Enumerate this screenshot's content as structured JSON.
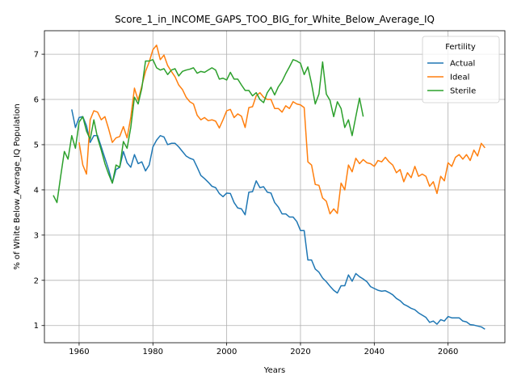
{
  "chart_data": {
    "type": "line",
    "title": "Score_1_in_INCOME_GAPS_TOO_BIG_for_White_Below_Average_IQ",
    "xlabel": "Years",
    "ylabel": "% of White Below_Average_IQ Population",
    "xlim": [
      1950.6,
      2075.4
    ],
    "ylim": [
      0.62,
      7.52
    ],
    "xticks": [
      1960,
      1980,
      2000,
      2020,
      2040,
      2060
    ],
    "yticks": [
      1,
      2,
      3,
      4,
      5,
      6,
      7
    ],
    "grid": true,
    "legend": {
      "title": "Fertility",
      "position": "top-right"
    },
    "series": [
      {
        "name": "Actual",
        "color": "#1f77b4",
        "points": [
          [
            1958,
            5.78
          ],
          [
            1959,
            5.38
          ],
          [
            1960,
            5.6
          ],
          [
            1961,
            5.62
          ],
          [
            1962,
            5.42
          ],
          [
            1963,
            5.05
          ],
          [
            1964,
            5.2
          ],
          [
            1965,
            5.2
          ],
          [
            1966,
            4.95
          ],
          [
            1967,
            4.7
          ],
          [
            1968,
            4.45
          ],
          [
            1969,
            4.15
          ],
          [
            1970,
            4.45
          ],
          [
            1971,
            4.5
          ],
          [
            1972,
            4.85
          ],
          [
            1973,
            4.6
          ],
          [
            1974,
            4.5
          ],
          [
            1975,
            4.78
          ],
          [
            1976,
            4.58
          ],
          [
            1977,
            4.62
          ],
          [
            1978,
            4.42
          ],
          [
            1979,
            4.55
          ],
          [
            1980,
            4.95
          ],
          [
            1981,
            5.1
          ],
          [
            1982,
            5.2
          ],
          [
            1983,
            5.17
          ],
          [
            1984,
            5.0
          ],
          [
            1985,
            5.03
          ],
          [
            1986,
            5.03
          ],
          [
            1987,
            4.95
          ],
          [
            1988,
            4.85
          ],
          [
            1989,
            4.75
          ],
          [
            1990,
            4.7
          ],
          [
            1991,
            4.67
          ],
          [
            1992,
            4.5
          ],
          [
            1993,
            4.32
          ],
          [
            1994,
            4.25
          ],
          [
            1995,
            4.17
          ],
          [
            1996,
            4.08
          ],
          [
            1997,
            4.05
          ],
          [
            1998,
            3.92
          ],
          [
            1999,
            3.85
          ],
          [
            2000,
            3.93
          ],
          [
            2001,
            3.92
          ],
          [
            2002,
            3.72
          ],
          [
            2003,
            3.6
          ],
          [
            2004,
            3.58
          ],
          [
            2005,
            3.45
          ],
          [
            2006,
            3.95
          ],
          [
            2007,
            3.96
          ],
          [
            2008,
            4.2
          ],
          [
            2009,
            4.05
          ],
          [
            2010,
            4.07
          ],
          [
            2011,
            3.95
          ],
          [
            2012,
            3.93
          ],
          [
            2013,
            3.72
          ],
          [
            2014,
            3.62
          ],
          [
            2015,
            3.47
          ],
          [
            2016,
            3.47
          ],
          [
            2017,
            3.4
          ],
          [
            2018,
            3.4
          ],
          [
            2019,
            3.3
          ],
          [
            2020,
            3.1
          ],
          [
            2021,
            3.1
          ],
          [
            2022,
            2.45
          ],
          [
            2023,
            2.45
          ],
          [
            2024,
            2.25
          ],
          [
            2025,
            2.18
          ],
          [
            2026,
            2.05
          ],
          [
            2027,
            1.97
          ],
          [
            2028,
            1.87
          ],
          [
            2029,
            1.78
          ],
          [
            2030,
            1.72
          ],
          [
            2031,
            1.88
          ],
          [
            2032,
            1.88
          ],
          [
            2033,
            2.12
          ],
          [
            2034,
            1.98
          ],
          [
            2035,
            2.15
          ],
          [
            2036,
            2.08
          ],
          [
            2037,
            2.03
          ],
          [
            2038,
            1.97
          ],
          [
            2039,
            1.86
          ],
          [
            2040,
            1.82
          ],
          [
            2041,
            1.78
          ],
          [
            2042,
            1.76
          ],
          [
            2043,
            1.77
          ],
          [
            2044,
            1.73
          ],
          [
            2045,
            1.68
          ],
          [
            2046,
            1.6
          ],
          [
            2047,
            1.55
          ],
          [
            2048,
            1.47
          ],
          [
            2049,
            1.43
          ],
          [
            2050,
            1.38
          ],
          [
            2051,
            1.35
          ],
          [
            2052,
            1.28
          ],
          [
            2053,
            1.23
          ],
          [
            2054,
            1.18
          ],
          [
            2055,
            1.07
          ],
          [
            2056,
            1.1
          ],
          [
            2057,
            1.03
          ],
          [
            2058,
            1.13
          ],
          [
            2059,
            1.1
          ],
          [
            2060,
            1.2
          ],
          [
            2061,
            1.17
          ],
          [
            2062,
            1.17
          ],
          [
            2063,
            1.17
          ],
          [
            2064,
            1.1
          ],
          [
            2065,
            1.08
          ],
          [
            2066,
            1.02
          ],
          [
            2067,
            1.01
          ],
          [
            2068,
            0.99
          ],
          [
            2069,
            0.97
          ],
          [
            2070,
            0.92
          ]
        ]
      },
      {
        "name": "Ideal",
        "color": "#ff7f0e",
        "points": [
          [
            1960,
            5.05
          ],
          [
            1961,
            4.55
          ],
          [
            1962,
            4.35
          ],
          [
            1963,
            5.55
          ],
          [
            1964,
            5.75
          ],
          [
            1965,
            5.72
          ],
          [
            1966,
            5.55
          ],
          [
            1967,
            5.62
          ],
          [
            1968,
            5.35
          ],
          [
            1969,
            5.05
          ],
          [
            1970,
            5.15
          ],
          [
            1971,
            5.18
          ],
          [
            1972,
            5.4
          ],
          [
            1973,
            5.15
          ],
          [
            1974,
            5.6
          ],
          [
            1975,
            6.25
          ],
          [
            1976,
            5.98
          ],
          [
            1977,
            6.3
          ],
          [
            1978,
            6.62
          ],
          [
            1979,
            6.83
          ],
          [
            1980,
            7.1
          ],
          [
            1981,
            7.2
          ],
          [
            1982,
            6.88
          ],
          [
            1983,
            6.98
          ],
          [
            1984,
            6.75
          ],
          [
            1985,
            6.62
          ],
          [
            1986,
            6.5
          ],
          [
            1987,
            6.32
          ],
          [
            1988,
            6.22
          ],
          [
            1989,
            6.05
          ],
          [
            1990,
            5.95
          ],
          [
            1991,
            5.9
          ],
          [
            1992,
            5.65
          ],
          [
            1993,
            5.55
          ],
          [
            1994,
            5.6
          ],
          [
            1995,
            5.53
          ],
          [
            1996,
            5.55
          ],
          [
            1997,
            5.52
          ],
          [
            1998,
            5.37
          ],
          [
            1999,
            5.55
          ],
          [
            2000,
            5.75
          ],
          [
            2001,
            5.78
          ],
          [
            2002,
            5.6
          ],
          [
            2003,
            5.68
          ],
          [
            2004,
            5.63
          ],
          [
            2005,
            5.38
          ],
          [
            2006,
            5.82
          ],
          [
            2007,
            5.84
          ],
          [
            2008,
            6.08
          ],
          [
            2009,
            6.15
          ],
          [
            2010,
            6.05
          ],
          [
            2011,
            6.0
          ],
          [
            2012,
            6.0
          ],
          [
            2013,
            5.8
          ],
          [
            2014,
            5.8
          ],
          [
            2015,
            5.72
          ],
          [
            2016,
            5.86
          ],
          [
            2017,
            5.8
          ],
          [
            2018,
            5.95
          ],
          [
            2019,
            5.9
          ],
          [
            2020,
            5.88
          ],
          [
            2021,
            5.82
          ],
          [
            2022,
            4.62
          ],
          [
            2023,
            4.55
          ],
          [
            2024,
            4.12
          ],
          [
            2025,
            4.1
          ],
          [
            2026,
            3.82
          ],
          [
            2027,
            3.75
          ],
          [
            2028,
            3.47
          ],
          [
            2029,
            3.58
          ],
          [
            2030,
            3.48
          ],
          [
            2031,
            4.15
          ],
          [
            2032,
            4.0
          ],
          [
            2033,
            4.55
          ],
          [
            2034,
            4.4
          ],
          [
            2035,
            4.7
          ],
          [
            2036,
            4.58
          ],
          [
            2037,
            4.67
          ],
          [
            2038,
            4.6
          ],
          [
            2039,
            4.58
          ],
          [
            2040,
            4.52
          ],
          [
            2041,
            4.65
          ],
          [
            2042,
            4.62
          ],
          [
            2043,
            4.72
          ],
          [
            2044,
            4.62
          ],
          [
            2045,
            4.55
          ],
          [
            2046,
            4.38
          ],
          [
            2047,
            4.45
          ],
          [
            2048,
            4.18
          ],
          [
            2049,
            4.38
          ],
          [
            2050,
            4.27
          ],
          [
            2051,
            4.52
          ],
          [
            2052,
            4.3
          ],
          [
            2053,
            4.35
          ],
          [
            2054,
            4.3
          ],
          [
            2055,
            4.08
          ],
          [
            2056,
            4.18
          ],
          [
            2057,
            3.92
          ],
          [
            2058,
            4.3
          ],
          [
            2059,
            4.2
          ],
          [
            2060,
            4.6
          ],
          [
            2061,
            4.52
          ],
          [
            2062,
            4.72
          ],
          [
            2063,
            4.78
          ],
          [
            2064,
            4.68
          ],
          [
            2065,
            4.78
          ],
          [
            2066,
            4.65
          ],
          [
            2067,
            4.88
          ],
          [
            2068,
            4.75
          ],
          [
            2069,
            5.03
          ],
          [
            2070,
            4.93
          ]
        ]
      },
      {
        "name": "Sterile",
        "color": "#2ca02c",
        "points": [
          [
            1953,
            3.88
          ],
          [
            1954,
            3.72
          ],
          [
            1955,
            4.3
          ],
          [
            1956,
            4.85
          ],
          [
            1957,
            4.68
          ],
          [
            1958,
            5.2
          ],
          [
            1959,
            4.92
          ],
          [
            1960,
            5.5
          ],
          [
            1961,
            5.62
          ],
          [
            1962,
            5.3
          ],
          [
            1963,
            5.12
          ],
          [
            1964,
            5.55
          ],
          [
            1965,
            5.15
          ],
          [
            1966,
            4.88
          ],
          [
            1967,
            4.58
          ],
          [
            1968,
            4.35
          ],
          [
            1969,
            4.15
          ],
          [
            1970,
            4.55
          ],
          [
            1971,
            4.5
          ],
          [
            1972,
            5.07
          ],
          [
            1973,
            4.92
          ],
          [
            1974,
            5.38
          ],
          [
            1975,
            6.05
          ],
          [
            1976,
            5.9
          ],
          [
            1977,
            6.25
          ],
          [
            1978,
            6.85
          ],
          [
            1979,
            6.85
          ],
          [
            1980,
            6.88
          ],
          [
            1981,
            6.7
          ],
          [
            1982,
            6.65
          ],
          [
            1983,
            6.68
          ],
          [
            1984,
            6.55
          ],
          [
            1985,
            6.65
          ],
          [
            1986,
            6.68
          ],
          [
            1987,
            6.52
          ],
          [
            1988,
            6.62
          ],
          [
            1989,
            6.65
          ],
          [
            1990,
            6.67
          ],
          [
            1991,
            6.7
          ],
          [
            1992,
            6.58
          ],
          [
            1993,
            6.62
          ],
          [
            1994,
            6.6
          ],
          [
            1995,
            6.65
          ],
          [
            1996,
            6.7
          ],
          [
            1997,
            6.65
          ],
          [
            1998,
            6.45
          ],
          [
            1999,
            6.47
          ],
          [
            2000,
            6.43
          ],
          [
            2001,
            6.6
          ],
          [
            2002,
            6.45
          ],
          [
            2003,
            6.45
          ],
          [
            2004,
            6.32
          ],
          [
            2005,
            6.2
          ],
          [
            2006,
            6.2
          ],
          [
            2007,
            6.08
          ],
          [
            2008,
            6.15
          ],
          [
            2009,
            6.0
          ],
          [
            2010,
            5.93
          ],
          [
            2011,
            6.15
          ],
          [
            2012,
            6.27
          ],
          [
            2013,
            6.1
          ],
          [
            2014,
            6.28
          ],
          [
            2015,
            6.4
          ],
          [
            2016,
            6.57
          ],
          [
            2017,
            6.72
          ],
          [
            2018,
            6.88
          ],
          [
            2019,
            6.85
          ],
          [
            2020,
            6.8
          ],
          [
            2021,
            6.55
          ],
          [
            2022,
            6.72
          ],
          [
            2023,
            6.35
          ],
          [
            2024,
            5.9
          ],
          [
            2025,
            6.12
          ],
          [
            2026,
            6.83
          ],
          [
            2027,
            6.12
          ],
          [
            2028,
            5.98
          ],
          [
            2029,
            5.62
          ],
          [
            2030,
            5.95
          ],
          [
            2031,
            5.8
          ],
          [
            2032,
            5.38
          ],
          [
            2033,
            5.55
          ],
          [
            2034,
            5.2
          ],
          [
            2035,
            5.62
          ],
          [
            2036,
            6.03
          ],
          [
            2037,
            5.62
          ]
        ]
      }
    ]
  }
}
